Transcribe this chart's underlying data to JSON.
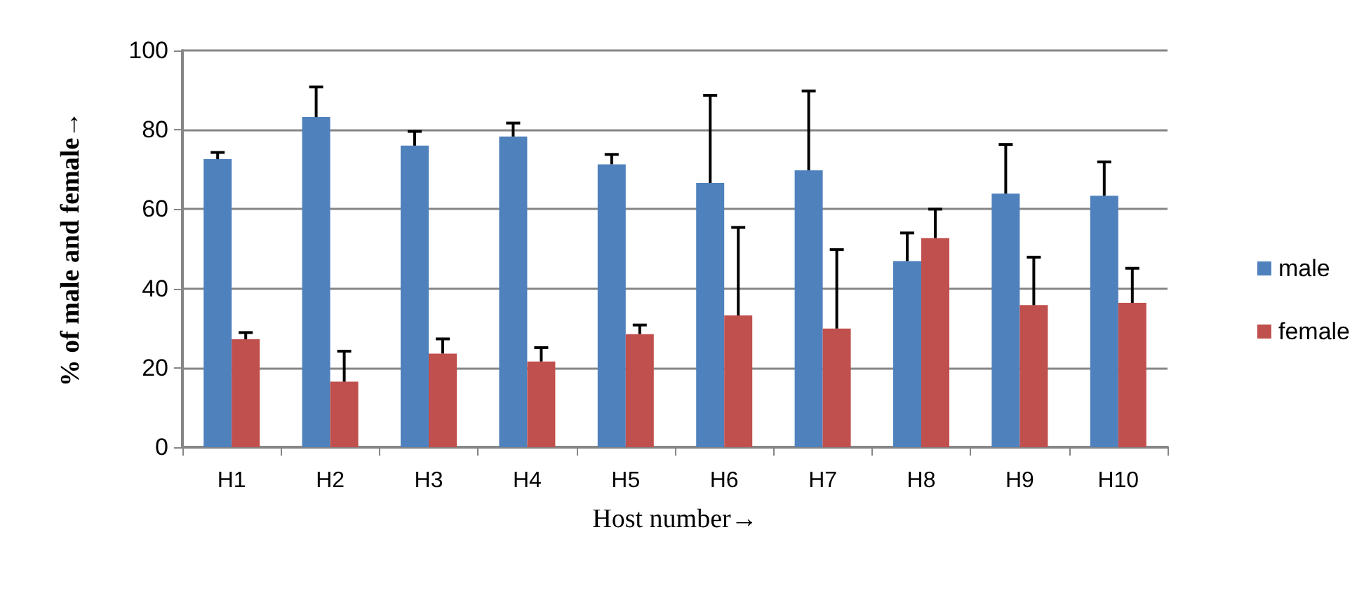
{
  "chart_data": {
    "type": "bar",
    "xlabel": "Host number→",
    "ylabel": "% of male and female→",
    "categories": [
      "H1",
      "H2",
      "H3",
      "H4",
      "H5",
      "H6",
      "H7",
      "H8",
      "H9",
      "H10"
    ],
    "series": [
      {
        "name": "male",
        "color": "#4f81bd",
        "values": [
          72.6,
          83.2,
          76,
          78.3,
          71.3,
          66.6,
          69.8,
          46.9,
          63.9,
          63.4
        ],
        "errors": [
          [
            72.6,
            74.3
          ],
          [
            83.2,
            90.8
          ],
          [
            76,
            79.6
          ],
          [
            78.3,
            81.7
          ],
          [
            71.3,
            73.8
          ],
          [
            66.6,
            88.7
          ],
          [
            69.8,
            89.8
          ],
          [
            46.9,
            54
          ],
          [
            63.9,
            76.3
          ],
          [
            63.4,
            71.9
          ]
        ]
      },
      {
        "name": "female",
        "color": "#c0504d",
        "values": [
          27.2,
          16.5,
          23.6,
          21.6,
          28.5,
          33.2,
          29.9,
          52.7,
          35.8,
          36.4
        ],
        "errors": [
          [
            27.2,
            28.9
          ],
          [
            16.5,
            24.2
          ],
          [
            23.6,
            27.3
          ],
          [
            21.6,
            25.1
          ],
          [
            28.5,
            30.8
          ],
          [
            33.2,
            55.4
          ],
          [
            29.9,
            49.8
          ],
          [
            52.7,
            60
          ],
          [
            35.8,
            47.9
          ],
          [
            36.4,
            45.1
          ]
        ]
      }
    ],
    "ylim": [
      0,
      100
    ],
    "yticks": [
      0,
      20,
      40,
      60,
      80,
      100
    ],
    "grid": "y",
    "legend": "right"
  }
}
